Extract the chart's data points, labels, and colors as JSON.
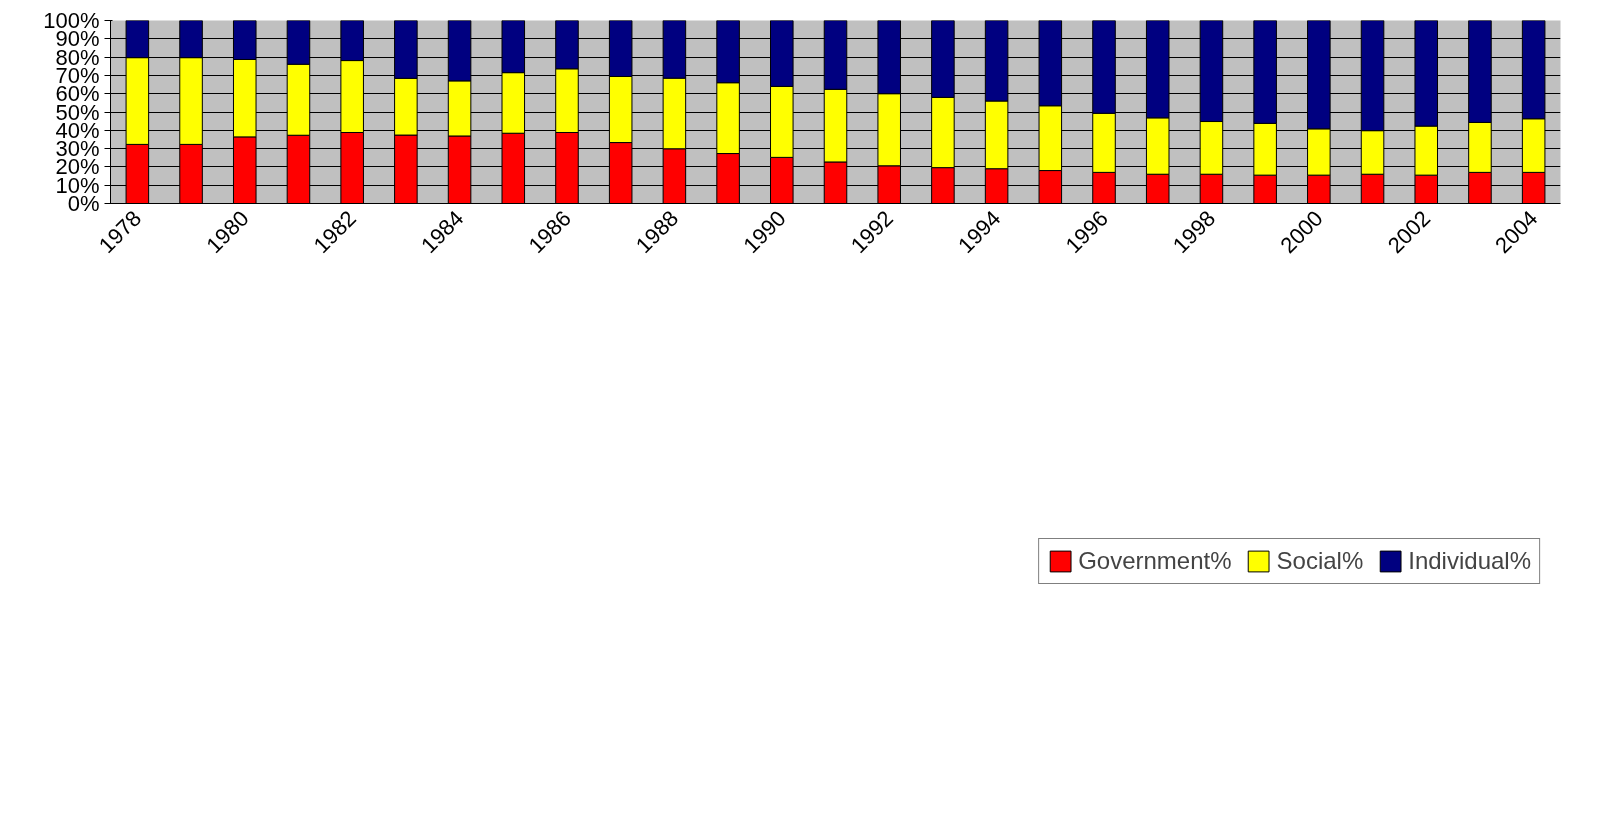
{
  "chart_data": {
    "type": "bar",
    "stacked": true,
    "categories": [
      "1978",
      null,
      "1980",
      null,
      "1982",
      null,
      "1984",
      null,
      "1986",
      null,
      "1988",
      null,
      "1990",
      null,
      "1992",
      null,
      "1994",
      null,
      "1996",
      null,
      "1998",
      null,
      "2000",
      null,
      "2002",
      null,
      "2004"
    ],
    "series": [
      {
        "name": "Government%",
        "color": "#ff0000",
        "values": [
          32.3,
          32.3,
          36.4,
          37.3,
          38.8,
          37.4,
          36.9,
          38.4,
          38.8,
          33.3,
          29.9,
          27.3,
          25.2,
          22.7,
          20.6,
          19.6,
          19.0,
          18.0,
          17.0,
          16.0,
          16.0,
          15.5,
          15.5,
          16.0,
          15.5,
          17.0,
          17.0
        ]
      },
      {
        "name": "Social%",
        "color": "#ffff00",
        "values": [
          47.4,
          47.4,
          42.3,
          38.8,
          39.3,
          31.0,
          30.1,
          33.1,
          34.8,
          36.1,
          38.6,
          38.7,
          38.8,
          39.7,
          39.4,
          38.4,
          37.0,
          35.4,
          32.3,
          30.8,
          28.8,
          28.3,
          25.3,
          23.8,
          26.8,
          27.3,
          29.3
        ]
      },
      {
        "name": "Individual%",
        "color": "#000080",
        "values": [
          20.3,
          20.3,
          21.3,
          23.9,
          21.9,
          31.6,
          33.0,
          28.5,
          26.4,
          30.6,
          31.5,
          34.0,
          36.0,
          37.6,
          40.0,
          42.0,
          44.0,
          46.6,
          50.7,
          53.2,
          55.2,
          56.2,
          59.2,
          60.2,
          57.7,
          55.7,
          53.7
        ]
      }
    ],
    "ylim": [
      0,
      100
    ],
    "yticks": [
      {
        "value": 0,
        "label": "0%"
      },
      {
        "value": 10,
        "label": "10%"
      },
      {
        "value": 20,
        "label": "20%"
      },
      {
        "value": 30,
        "label": "30%"
      },
      {
        "value": 40,
        "label": "40%"
      },
      {
        "value": 50,
        "label": "50%"
      },
      {
        "value": 60,
        "label": "60%"
      },
      {
        "value": 70,
        "label": "70%"
      },
      {
        "value": 80,
        "label": "80%"
      },
      {
        "value": 90,
        "label": "90%"
      },
      {
        "value": 100,
        "label": "100%"
      }
    ],
    "grid": "y",
    "legend": "bottom"
  }
}
